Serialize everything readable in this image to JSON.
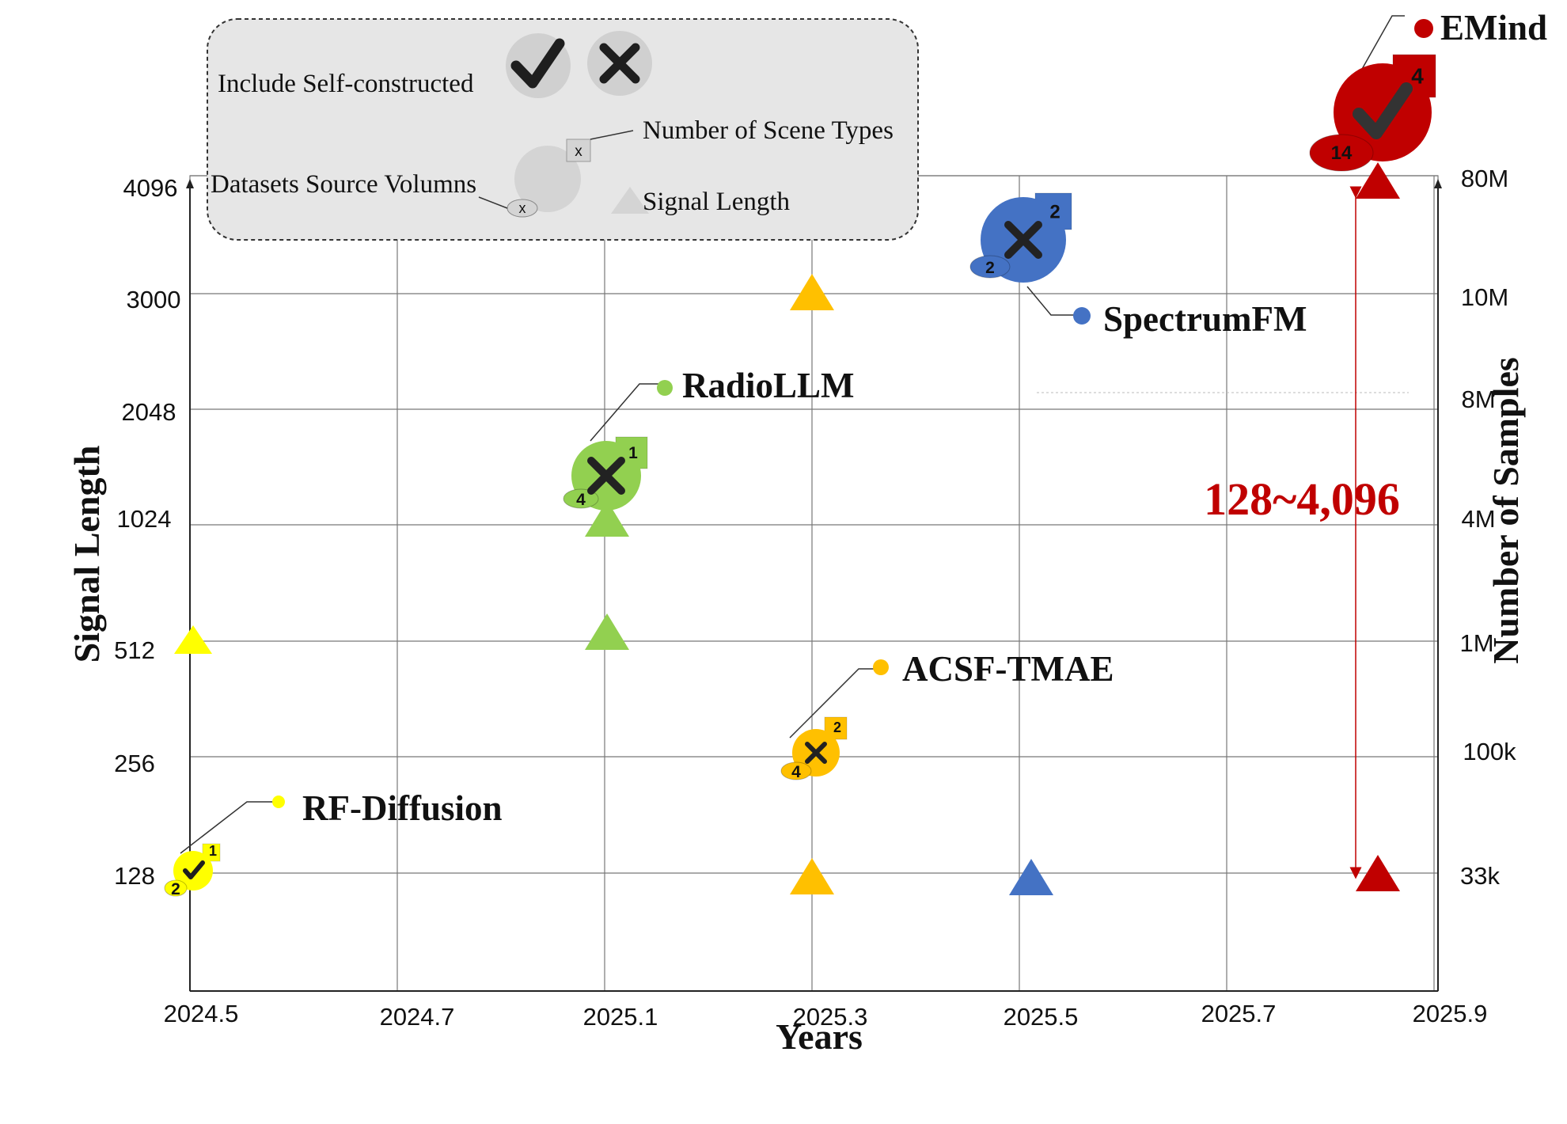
{
  "chart_data": {
    "type": "scatter",
    "xlabel": "Years",
    "ylabel_left": "Signal Length",
    "ylabel_right": "Number of Samples",
    "x_ticks": [
      "2024.5",
      "2024.7",
      "2025.1",
      "2025.3",
      "2025.5",
      "2025.7",
      "2025.9"
    ],
    "y_left_ticks": [
      "128",
      "256",
      "512",
      "1024",
      "2048",
      "3000",
      "4096"
    ],
    "y_right_ticks": [
      "33k",
      "100k",
      "1M",
      "4M",
      "8M",
      "10M",
      "80M"
    ],
    "grid": true,
    "legend_placement": "top-left",
    "legend": {
      "self_constructed_label": "Include Self-constructed",
      "scene_types_label": "Number of Scene Types",
      "source_volumes_label": "Datasets Source Volumns",
      "signal_length_label": "Signal Length",
      "scene_badge_sample": "x",
      "source_badge_sample": "x"
    },
    "range_note": "128~4,096",
    "models": [
      {
        "name": "RF-Diffusion",
        "x": "2024.5",
        "color": "#ffff00",
        "self_constructed": true,
        "num_samples": "33k",
        "scene_types": "1",
        "source_volumes": "2",
        "signal_length": [
          "512"
        ]
      },
      {
        "name": "RadioLLM",
        "x": "2025.1",
        "color": "#92d050",
        "self_constructed": false,
        "num_samples": "4M",
        "scene_types": "1",
        "source_volumes": "4",
        "signal_length": [
          "512",
          "1024"
        ]
      },
      {
        "name": "ACSF-TMAE",
        "x": "2025.3",
        "color": "#ffc000",
        "self_constructed": false,
        "num_samples": "100k",
        "scene_types": "2",
        "source_volumes": "4",
        "signal_length": [
          "128",
          "3000"
        ]
      },
      {
        "name": "SpectrumFM",
        "x": "2025.5",
        "color": "#4472c4",
        "self_constructed": false,
        "num_samples": "10M",
        "scene_types": "2",
        "source_volumes": "2",
        "signal_length": [
          "128"
        ]
      },
      {
        "name": "EMind",
        "x": "2025.9",
        "color": "#c00000",
        "self_constructed": true,
        "num_samples": "80M",
        "scene_types": "4",
        "source_volumes": "14",
        "signal_length": [
          "128",
          "4096"
        ]
      }
    ]
  }
}
